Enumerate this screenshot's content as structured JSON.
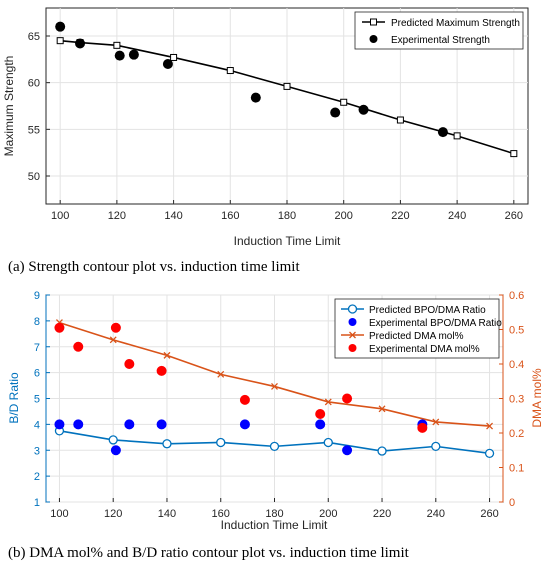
{
  "chart_data": [
    {
      "type": "line",
      "caption": "(a) Strength contour plot vs. induction time limit",
      "xlabel": "Induction Time Limit",
      "ylabel": "Maximum Strength",
      "xlim": [
        95,
        265
      ],
      "ylim": [
        47,
        68
      ],
      "xticks": [
        100,
        120,
        140,
        160,
        180,
        200,
        220,
        240,
        260
      ],
      "yticks": [
        50,
        55,
        60,
        65
      ],
      "grid": true,
      "legend_position": "top-right",
      "series": [
        {
          "name": "Predicted Maximum Strength",
          "type": "line",
          "color": "#000000",
          "marker": "square",
          "x": [
            100,
            107,
            120,
            140,
            160,
            180,
            200,
            220,
            240,
            260
          ],
          "y": [
            64.5,
            64.3,
            64.0,
            62.7,
            61.3,
            59.6,
            57.9,
            56.0,
            54.3,
            52.4
          ]
        },
        {
          "name": "Experimental Strength",
          "type": "scatter",
          "color": "#000000",
          "marker": "circle",
          "x": [
            100,
            107,
            121,
            126,
            138,
            169,
            197,
            207,
            235
          ],
          "y": [
            66.0,
            64.2,
            62.9,
            63.0,
            62.0,
            58.4,
            56.8,
            57.1,
            54.7
          ]
        }
      ]
    },
    {
      "type": "line",
      "caption": "(b) DMA mol% and B/D ratio contour plot vs. induction time limit",
      "xlabel": "Induction Time Limit",
      "ylabel_left": "B/D Ratio",
      "ylabel_right": "DMA mol%",
      "xlim": [
        95,
        265
      ],
      "ylim_left": [
        1,
        9
      ],
      "ylim_right": [
        0,
        0.6
      ],
      "xticks": [
        100,
        120,
        140,
        160,
        180,
        200,
        220,
        240,
        260
      ],
      "yticks_left": [
        1,
        2,
        3,
        4,
        5,
        6,
        7,
        8,
        9
      ],
      "yticks_right": [
        "0",
        "0.1",
        "0.2",
        "0.3",
        "0.4",
        "0.5",
        "0.6"
      ],
      "grid": true,
      "legend_position": "top-right",
      "left_color": "#0072BD",
      "right_color": "#D95319",
      "series": [
        {
          "name": "Predicted BPO/DMA Ratio",
          "type": "line",
          "axis": "left",
          "color": "#0072BD",
          "marker": "open-circle",
          "x": [
            100,
            120,
            140,
            160,
            180,
            200,
            220,
            240,
            260
          ],
          "y": [
            3.75,
            3.4,
            3.25,
            3.3,
            3.15,
            3.3,
            2.97,
            3.15,
            2.88
          ]
        },
        {
          "name": "Experimental BPO/DMA Ratio",
          "type": "scatter",
          "axis": "left",
          "color": "#0000FF",
          "marker": "circle",
          "x": [
            100,
            107,
            121,
            126,
            138,
            169,
            197,
            207,
            235
          ],
          "y": [
            4,
            4,
            3,
            4,
            4,
            4,
            4,
            3,
            4
          ]
        },
        {
          "name": "Predicted DMA mol%",
          "type": "line",
          "axis": "right",
          "color": "#D95319",
          "marker": "x",
          "x": [
            100,
            120,
            140,
            160,
            180,
            200,
            220,
            240,
            260
          ],
          "y": [
            0.52,
            0.47,
            0.425,
            0.37,
            0.335,
            0.29,
            0.27,
            0.232,
            0.22
          ]
        },
        {
          "name": "Experimental DMA mol%",
          "type": "scatter",
          "axis": "right",
          "color": "#FF0000",
          "marker": "circle",
          "x": [
            100,
            107,
            121,
            126,
            138,
            169,
            197,
            207,
            235
          ],
          "y": [
            0.505,
            0.45,
            0.505,
            0.4,
            0.38,
            0.296,
            0.255,
            0.3,
            0.215
          ]
        }
      ]
    }
  ]
}
